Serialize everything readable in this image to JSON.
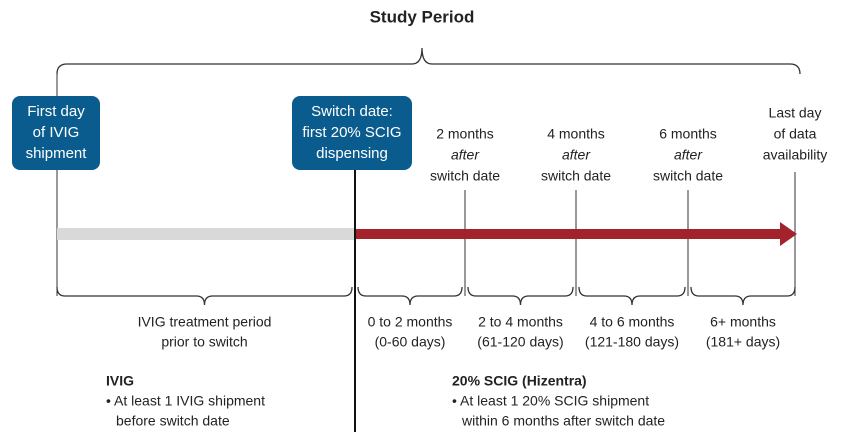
{
  "title": "Study Period",
  "boxes": [
    {
      "lines": [
        "First day",
        "of IVIG",
        "shipment"
      ]
    },
    {
      "lines": [
        "Switch date:",
        "first 20% SCIG",
        "dispensing"
      ]
    }
  ],
  "milestones": [
    {
      "lines": [
        "2 months",
        "after",
        "switch date"
      ]
    },
    {
      "lines": [
        "4 months",
        "after",
        "switch date"
      ]
    },
    {
      "lines": [
        "6 months",
        "after",
        "switch date"
      ]
    },
    {
      "lines": [
        "Last day",
        "of data",
        "availability"
      ]
    }
  ],
  "periods": [
    {
      "lines": [
        "IVIG treatment period",
        "prior to switch"
      ]
    },
    {
      "lines": [
        "0 to 2 months",
        "(0-60 days)"
      ]
    },
    {
      "lines": [
        "2 to 4 months",
        "(61-120 days)"
      ]
    },
    {
      "lines": [
        "4 to 6 months",
        "(121-180 days)"
      ]
    },
    {
      "lines": [
        "6+ months",
        "(181+ days)"
      ]
    }
  ],
  "regimens": [
    {
      "title": "IVIG",
      "bullets": [
        "• At least 1 IVIG shipment",
        "before switch date"
      ]
    },
    {
      "title": "20% SCIG (Hizentra)",
      "bullets": [
        "• At least 1 20% SCIG shipment",
        "within 6 months after switch date"
      ]
    }
  ]
}
